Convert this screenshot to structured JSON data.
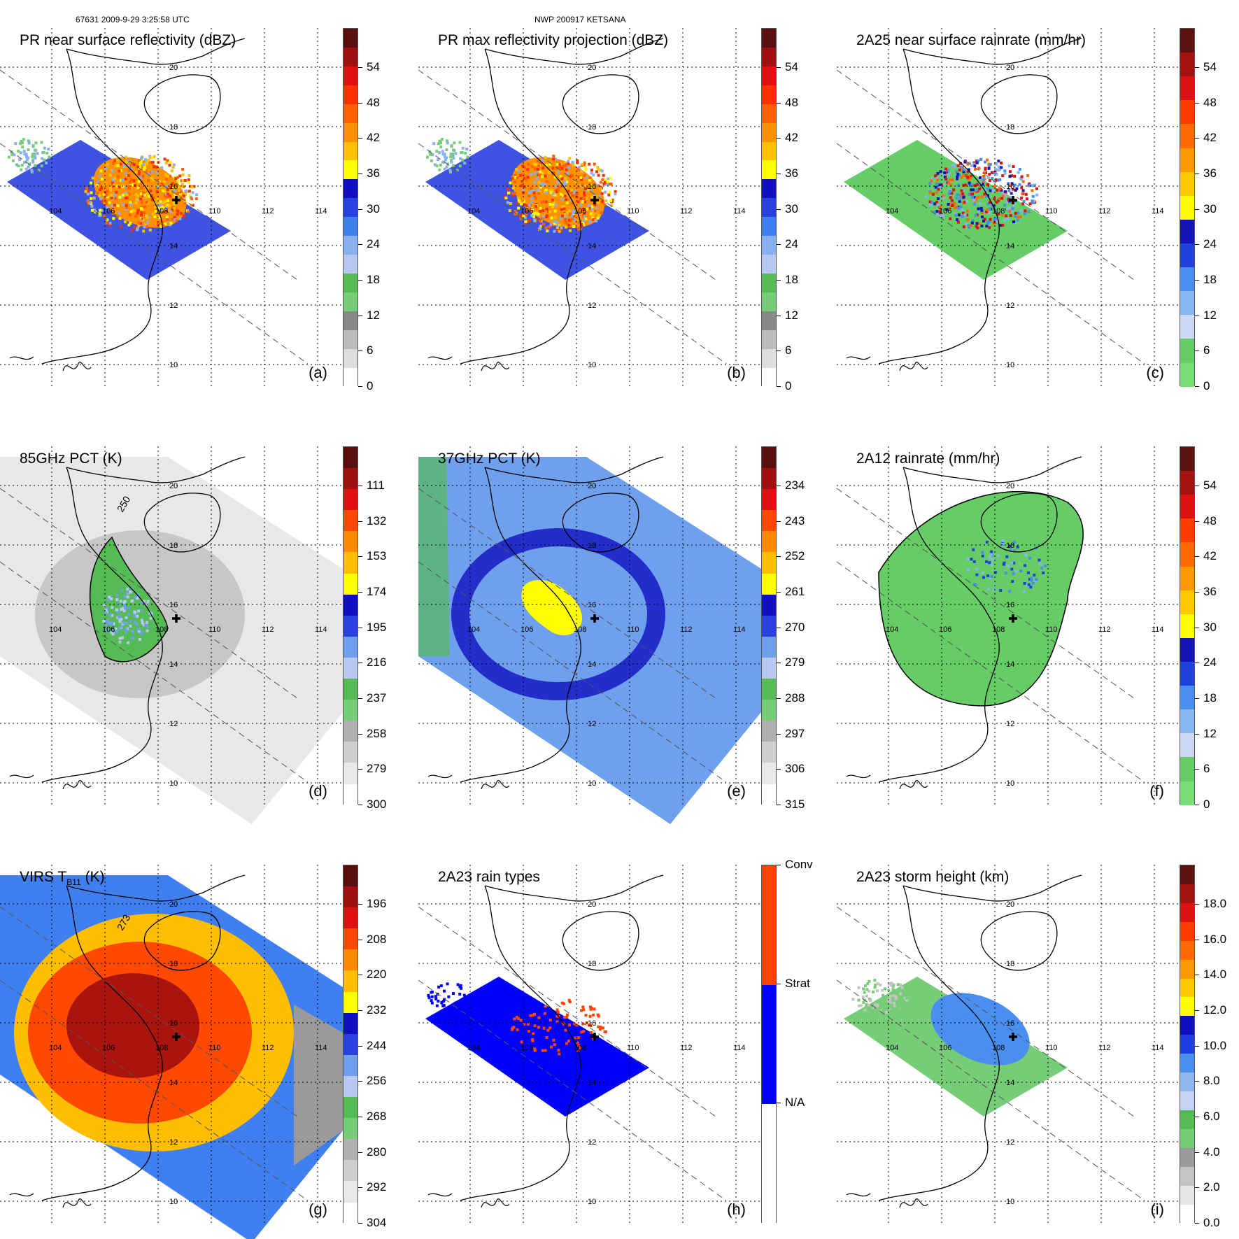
{
  "header": {
    "left": "67631 2009-9-29 3:25:58 UTC",
    "center": "NWP 200917 KETSANA"
  },
  "grid_labels": {
    "lon": [
      "104",
      "106",
      "108",
      "110",
      "112",
      "114"
    ],
    "lat": [
      "20",
      "18",
      "16",
      "14",
      "12",
      "10"
    ]
  },
  "palettes": {
    "reflectivity": [
      "#ffffff",
      "#dddddd",
      "#bbbbbb",
      "#888888",
      "#77cc77",
      "#55bb55",
      "#b8c8f0",
      "#88b0ee",
      "#3f7ff0",
      "#2a40e0",
      "#1010c0",
      "#ffff00",
      "#ffc000",
      "#ff9000",
      "#ff6000",
      "#ff3000",
      "#e01010",
      "#a01010",
      "#5a1010"
    ],
    "rain": [
      "#77dd77",
      "#66cc66",
      "#cdd8f4",
      "#88b6ef",
      "#4a8ff0",
      "#2040e0",
      "#1414b8",
      "#ffff00",
      "#ffc800",
      "#ff9800",
      "#ff6a00",
      "#ff3c00",
      "#dd1111",
      "#a51010",
      "#5c1212"
    ],
    "pct85": [
      "#ffffff",
      "#e8e8e8",
      "#cfcfcf",
      "#b0b0b0",
      "#77cc77",
      "#55bb55",
      "#b8c8f0",
      "#6fa0ee",
      "#2a40e0",
      "#1010c0",
      "#ffff00",
      "#ffbf00",
      "#ff8a00",
      "#ff4800",
      "#e01010",
      "#a01010",
      "#5a1010"
    ],
    "types": [
      "#ffffff",
      "#ffffff",
      "#0000ff",
      "#0000ff",
      "#ff4400",
      "#ff4400"
    ],
    "height": [
      "#ffffff",
      "#e6e6e6",
      "#c4c4c4",
      "#9a9a9a",
      "#77cc77",
      "#55bb55",
      "#c4d2f4",
      "#8fb6ef",
      "#4a8ff0",
      "#1f3fe0",
      "#1010c0",
      "#ffff00",
      "#ffc800",
      "#ff9800",
      "#ff6a00",
      "#ff3c00",
      "#dd1111",
      "#a51010",
      "#5c1212"
    ]
  },
  "panels": [
    {
      "id": "a",
      "title": "PR near surface reflectivity (dBZ)",
      "label": "(a)",
      "palette": "reflectivity",
      "ticks": [
        "54",
        "48",
        "42",
        "36",
        "30",
        "24",
        "18",
        "12",
        "6",
        "0"
      ]
    },
    {
      "id": "b",
      "title": "PR max reflectivity projection (dBZ)",
      "label": "(b)",
      "palette": "reflectivity",
      "ticks": [
        "54",
        "48",
        "42",
        "36",
        "30",
        "24",
        "18",
        "12",
        "6",
        "0"
      ]
    },
    {
      "id": "c",
      "title": "2A25 near surface rainrate (mm/hr)",
      "label": "(c)",
      "palette": "rain",
      "ticks": [
        "54",
        "48",
        "42",
        "36",
        "30",
        "24",
        "18",
        "12",
        "6",
        "0"
      ]
    },
    {
      "id": "d",
      "title": "85GHz PCT (K)",
      "label": "(d)",
      "palette": "pct85",
      "ticks": [
        "111",
        "132",
        "153",
        "174",
        "195",
        "216",
        "237",
        "258",
        "279",
        "300"
      ],
      "contour_label": "250"
    },
    {
      "id": "e",
      "title": "37GHz PCT (K)",
      "label": "(e)",
      "palette": "pct85",
      "ticks": [
        "234",
        "243",
        "252",
        "261",
        "270",
        "279",
        "288",
        "297",
        "306",
        "315"
      ]
    },
    {
      "id": "f",
      "title": "2A12 rainrate (mm/hr)",
      "label": "(f)",
      "palette": "rain",
      "ticks": [
        "54",
        "48",
        "42",
        "36",
        "30",
        "24",
        "18",
        "12",
        "6",
        "0"
      ]
    },
    {
      "id": "g",
      "title": "VIRS T",
      "title_sub": "B11",
      "title_end": "(K)",
      "label": "(g)",
      "palette": "pct85",
      "ticks": [
        "196",
        "208",
        "220",
        "232",
        "244",
        "256",
        "268",
        "280",
        "292",
        "304"
      ],
      "contour_label": "273"
    },
    {
      "id": "h",
      "title": "2A23 rain types",
      "label": "(h)",
      "palette": "types",
      "ticks": [
        "Conv",
        "Strat",
        "N/A"
      ]
    },
    {
      "id": "i",
      "title": "2A23 storm height (km)",
      "label": "(i)",
      "palette": "height",
      "ticks": [
        "18.0",
        "16.0",
        "14.0",
        "12.0",
        "10.0",
        "8.0",
        "6.0",
        "4.0",
        "2.0",
        "0.0"
      ]
    }
  ]
}
